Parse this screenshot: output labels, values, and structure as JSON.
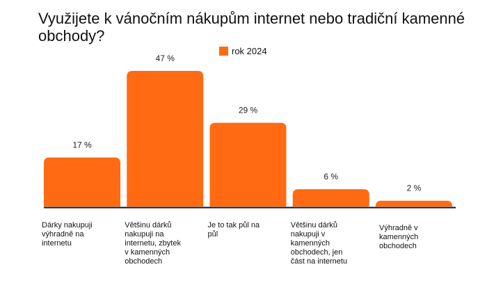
{
  "chart_data": {
    "type": "bar",
    "title": "Využijete k vánočním nákupům internet nebo tradiční kamenné obchody?",
    "categories": [
      "Dárky nakupuji výhradně na internetu",
      "Většinu dárků nakupuji na internetu, zbytek v kamenných obchodech",
      "Je to tak půl na půl",
      "Většinu dárků nakupuji v kamenných obchodech, jen část na internetu",
      "Výhradně v kamenných obchodech"
    ],
    "series": [
      {
        "name": "rok 2024",
        "values": [
          17,
          47,
          29,
          6,
          2
        ],
        "color": "#FF6A13"
      }
    ],
    "data_labels": [
      "17 %",
      "47 %",
      "29 %",
      "6 %",
      "2 %"
    ],
    "xlabel": "",
    "ylabel": "",
    "ylim": [
      0,
      47
    ],
    "grid": false,
    "legend_position": "top-center",
    "axis_color": "#111111"
  }
}
